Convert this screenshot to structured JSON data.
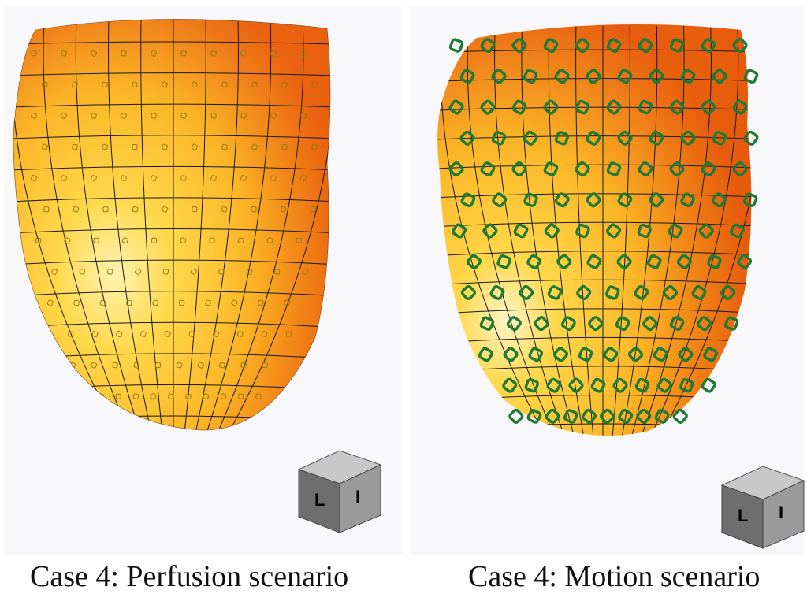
{
  "captions": {
    "left": "Case 4: Perfusion scenario",
    "right": "Case 4: Motion scenario"
  },
  "orientation_cube": {
    "left_face": "L",
    "right_face": "I",
    "icon": "orientation-cube-icon"
  },
  "colors": {
    "background": "#f8f8fb",
    "surface_light": "#ffe98a",
    "surface_mid": "#fbc02a",
    "surface_dark": "#e65a10",
    "grid": "#1a1a1a",
    "markers_motion": "#1f7a35",
    "markers_perfusion": "#9b7a10",
    "cube_top": "#c8c8c8",
    "cube_left": "#6e6e6e",
    "cube_right": "#9a9a9a"
  }
}
